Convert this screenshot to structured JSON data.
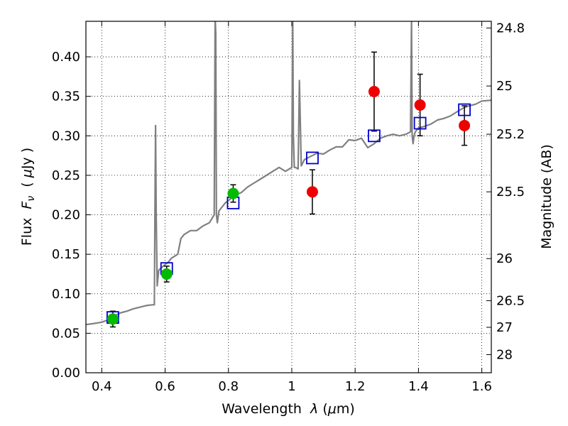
{
  "chart_data": {
    "type": "scatter",
    "xlabel_parts": [
      "Wavelength  ",
      "λ",
      " (",
      "μ",
      "m)"
    ],
    "ylabel_parts": [
      "Flux  ",
      "F",
      "ν",
      "  ( ",
      "μ",
      "Jy )"
    ],
    "y2label": "Magnitude (AB)",
    "xlim": [
      0.35,
      1.63
    ],
    "ylim": [
      0.0,
      0.445
    ],
    "grid": true,
    "x_ticks": [
      0.4,
      0.6,
      0.8,
      1.0,
      1.2,
      1.4,
      1.6
    ],
    "x_tick_labels": [
      "0.4",
      "0.6",
      "0.8",
      "1",
      "1.2",
      "1.4",
      "1.6"
    ],
    "y_ticks": [
      0.0,
      0.05,
      0.1,
      0.15,
      0.2,
      0.25,
      0.3,
      0.35,
      0.4
    ],
    "y_tick_labels": [
      "0.00",
      "0.05",
      "0.10",
      "0.15",
      "0.20",
      "0.25",
      "0.30",
      "0.35",
      "0.40"
    ],
    "y2_tick_labels": [
      "24.8",
      "25",
      "25.2",
      "25.5",
      "26",
      "26.5",
      "27",
      "28"
    ],
    "colors": {
      "spectrum": "#808080",
      "model_box": "#0000cc",
      "green_points": "#00bb00",
      "red_points": "#ee0000",
      "errorbar": "#000000"
    },
    "spectrum": {
      "name": "",
      "x": [
        0.35,
        0.37,
        0.4,
        0.42,
        0.44,
        0.46,
        0.48,
        0.5,
        0.52,
        0.54,
        0.56,
        0.566,
        0.568,
        0.57,
        0.572,
        0.575,
        0.58,
        0.6,
        0.61,
        0.62,
        0.64,
        0.65,
        0.66,
        0.68,
        0.7,
        0.72,
        0.74,
        0.755,
        0.758,
        0.76,
        0.762,
        0.765,
        0.77,
        0.79,
        0.8,
        0.82,
        0.84,
        0.86,
        0.88,
        0.9,
        0.92,
        0.94,
        0.96,
        0.98,
        1.0,
        1.003,
        1.005,
        1.008,
        1.012,
        1.02,
        1.024,
        1.03,
        1.04,
        1.06,
        1.08,
        1.1,
        1.12,
        1.14,
        1.16,
        1.18,
        1.2,
        1.22,
        1.24,
        1.26,
        1.28,
        1.3,
        1.32,
        1.34,
        1.36,
        1.375,
        1.378,
        1.38,
        1.383,
        1.386,
        1.39,
        1.4,
        1.42,
        1.44,
        1.46,
        1.48,
        1.5,
        1.52,
        1.54,
        1.56,
        1.58,
        1.6,
        1.63
      ],
      "y": [
        0.061,
        0.062,
        0.064,
        0.067,
        0.072,
        0.076,
        0.078,
        0.081,
        0.083,
        0.085,
        0.086,
        0.086,
        0.2,
        0.313,
        0.2,
        0.11,
        0.13,
        0.137,
        0.14,
        0.145,
        0.15,
        0.17,
        0.175,
        0.18,
        0.18,
        0.186,
        0.19,
        0.2,
        0.45,
        0.43,
        0.2,
        0.19,
        0.205,
        0.215,
        0.218,
        0.225,
        0.228,
        0.235,
        0.24,
        0.245,
        0.25,
        0.255,
        0.26,
        0.255,
        0.26,
        0.45,
        0.3,
        0.26,
        0.26,
        0.258,
        0.37,
        0.262,
        0.27,
        0.274,
        0.278,
        0.277,
        0.282,
        0.286,
        0.286,
        0.295,
        0.294,
        0.297,
        0.285,
        0.29,
        0.297,
        0.3,
        0.302,
        0.3,
        0.302,
        0.305,
        0.45,
        0.3,
        0.29,
        0.3,
        0.305,
        0.31,
        0.312,
        0.315,
        0.32,
        0.322,
        0.325,
        0.33,
        0.335,
        0.338,
        0.34,
        0.344,
        0.345
      ]
    },
    "model_boxes": {
      "name": "",
      "x": [
        0.435,
        0.605,
        0.815,
        1.065,
        1.26,
        1.405,
        1.545
      ],
      "y": [
        0.07,
        0.132,
        0.215,
        0.272,
        0.3,
        0.316,
        0.333
      ]
    },
    "green_points": {
      "name": "",
      "x": [
        0.435,
        0.605,
        0.815
      ],
      "y": [
        0.068,
        0.125,
        0.227
      ],
      "yerr": [
        0.01,
        0.01,
        0.011
      ]
    },
    "red_points": {
      "name": "",
      "x": [
        1.065,
        1.26,
        1.405,
        1.545
      ],
      "y": [
        0.229,
        0.356,
        0.339,
        0.313
      ],
      "yerr": [
        0.028,
        0.05,
        0.039,
        0.025
      ]
    }
  }
}
